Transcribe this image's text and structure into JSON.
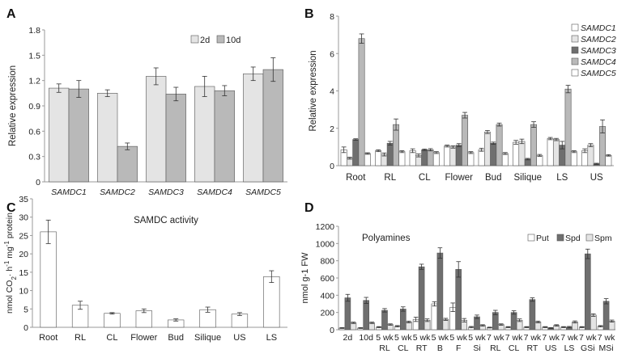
{
  "colors": {
    "light": "#e4e4e4",
    "mid": "#b9b9b9",
    "dark": "#6f6f6f",
    "white": "#ffffff",
    "axis": "#9a9a9a",
    "bar_stroke": "#555555",
    "error": "#333333"
  },
  "chart_data": [
    {
      "panel": "A",
      "type": "bar",
      "title": "",
      "xlabel": "",
      "ylabel": "Relative expression",
      "ylim": [
        0,
        1.8
      ],
      "yticks": [
        "0",
        "0.3",
        "0.6",
        "0.9",
        "1.2",
        "1.5",
        "1.8"
      ],
      "categories": [
        "SAMDC1",
        "SAMDC2",
        "SAMDC3",
        "SAMDC4",
        "SAMDC5"
      ],
      "legend_position": "top-right",
      "series": [
        {
          "name": "2d",
          "fill": "light",
          "values": [
            1.11,
            1.05,
            1.25,
            1.13,
            1.28
          ],
          "errors": [
            0.05,
            0.04,
            0.1,
            0.12,
            0.08
          ]
        },
        {
          "name": "10d",
          "fill": "mid",
          "values": [
            1.1,
            0.42,
            1.04,
            1.08,
            1.33
          ],
          "errors": [
            0.1,
            0.04,
            0.08,
            0.06,
            0.14
          ]
        }
      ]
    },
    {
      "panel": "B",
      "type": "bar",
      "title": "",
      "xlabel": "",
      "ylabel": "Relative expression",
      "ylim": [
        0,
        8
      ],
      "yticks": [
        "0",
        "2",
        "4",
        "6",
        "8"
      ],
      "categories": [
        "Root",
        "RL",
        "CL",
        "Flower",
        "Bud",
        "Silique",
        "LS",
        "US"
      ],
      "legend_position": "top-right",
      "series": [
        {
          "name": "SAMDC1",
          "fill": "white",
          "values": [
            0.85,
            0.8,
            0.8,
            1.05,
            0.85,
            1.25,
            1.45,
            0.8
          ],
          "errors": [
            0.15,
            0.05,
            0.1,
            0.05,
            0.08,
            0.1,
            0.06,
            0.1
          ]
        },
        {
          "name": "SAMDC2",
          "fill": "light",
          "values": [
            0.4,
            0.6,
            0.55,
            1.0,
            1.8,
            1.3,
            1.4,
            1.1
          ],
          "errors": [
            0.05,
            0.08,
            0.08,
            0.06,
            0.08,
            0.12,
            0.06,
            0.08
          ]
        },
        {
          "name": "SAMDC3",
          "fill": "dark",
          "values": [
            1.4,
            1.2,
            0.85,
            1.1,
            1.2,
            0.35,
            1.1,
            0.1
          ],
          "errors": [
            0.04,
            0.1,
            0.04,
            0.08,
            0.06,
            0.04,
            0.2,
            0.03
          ]
        },
        {
          "name": "SAMDC4",
          "fill": "mid",
          "values": [
            6.8,
            2.2,
            0.85,
            2.7,
            2.2,
            2.2,
            4.1,
            2.1
          ],
          "errors": [
            0.25,
            0.3,
            0.06,
            0.15,
            0.08,
            0.15,
            0.2,
            0.35
          ]
        },
        {
          "name": "SAMDC5",
          "fill": "white",
          "values": [
            0.65,
            0.75,
            0.7,
            0.7,
            0.65,
            0.55,
            0.75,
            0.55
          ],
          "errors": [
            0.04,
            0.05,
            0.05,
            0.05,
            0.05,
            0.05,
            0.05,
            0.04
          ]
        }
      ]
    },
    {
      "panel": "C",
      "type": "bar",
      "title": "SAMDC activity",
      "xlabel": "",
      "ylabel_parts": [
        "nmol CO",
        "2",
        "· h",
        "-1",
        " mg",
        "-1",
        " protein"
      ],
      "ylim": [
        0,
        35
      ],
      "yticks": [
        "0",
        "5",
        "10",
        "15",
        "20",
        "25",
        "30",
        "35"
      ],
      "categories": [
        "Root",
        "RL",
        "CL",
        "Flower",
        "Bud",
        "Silique",
        "US",
        "LS"
      ],
      "series": [
        {
          "name": "activity",
          "fill": "white",
          "values": [
            26,
            6,
            3.8,
            4.5,
            2,
            4.8,
            3.6,
            13.8
          ],
          "errors": [
            3.2,
            1.1,
            0.2,
            0.5,
            0.3,
            0.7,
            0.4,
            1.6
          ]
        }
      ]
    },
    {
      "panel": "D",
      "type": "bar",
      "title": "Polyamines",
      "xlabel": "",
      "ylabel": "nmol g-1 FW",
      "ylim": [
        0,
        1200
      ],
      "yticks": [
        "0",
        "200",
        "400",
        "600",
        "800",
        "1000",
        "1200"
      ],
      "categories": [
        "2d",
        "10d",
        "5 wk RL",
        "5 wk CL",
        "5 wk RT",
        "5 wk B",
        "5 wk F",
        "5 wk Si",
        "7 wk RL",
        "7 wk CL",
        "7 wk RT",
        "7 wk US",
        "7 wk LS",
        "7 wk GSi",
        "7 wk MSi"
      ],
      "category_lines": [
        [
          "2d",
          ""
        ],
        [
          "10d",
          ""
        ],
        [
          "5 wk",
          "RL"
        ],
        [
          "5 wk",
          "CL"
        ],
        [
          "5 wk",
          "RT"
        ],
        [
          "5 wk",
          "B"
        ],
        [
          "5 wk",
          "F"
        ],
        [
          "5 wk",
          "Si"
        ],
        [
          "7 wk",
          "RL"
        ],
        [
          "7 wk",
          "CL"
        ],
        [
          "7 wk",
          "RT"
        ],
        [
          "7 wk",
          "US"
        ],
        [
          "7 wk",
          "LS"
        ],
        [
          "7 wk",
          "GSi"
        ],
        [
          "7 wk",
          "MSi"
        ]
      ],
      "legend_position": "top-right",
      "series": [
        {
          "name": "Put",
          "fill": "white",
          "values": [
            20,
            20,
            30,
            40,
            120,
            300,
            260,
            30,
            25,
            30,
            30,
            30,
            30,
            30,
            40
          ],
          "errors": [
            5,
            5,
            6,
            8,
            25,
            25,
            50,
            8,
            5,
            6,
            6,
            6,
            6,
            6,
            8
          ]
        },
        {
          "name": "Spd",
          "fill": "dark",
          "values": [
            370,
            340,
            225,
            240,
            730,
            890,
            700,
            150,
            200,
            200,
            350,
            20,
            30,
            880,
            330
          ],
          "errors": [
            40,
            35,
            20,
            25,
            30,
            60,
            90,
            20,
            25,
            20,
            20,
            5,
            8,
            55,
            30
          ]
        },
        {
          "name": "Spm",
          "fill": "light",
          "values": [
            80,
            80,
            60,
            90,
            110,
            120,
            110,
            50,
            60,
            110,
            90,
            50,
            90,
            170,
            100
          ],
          "errors": [
            8,
            8,
            8,
            10,
            15,
            12,
            20,
            8,
            8,
            15,
            10,
            8,
            12,
            15,
            12
          ]
        }
      ]
    }
  ]
}
